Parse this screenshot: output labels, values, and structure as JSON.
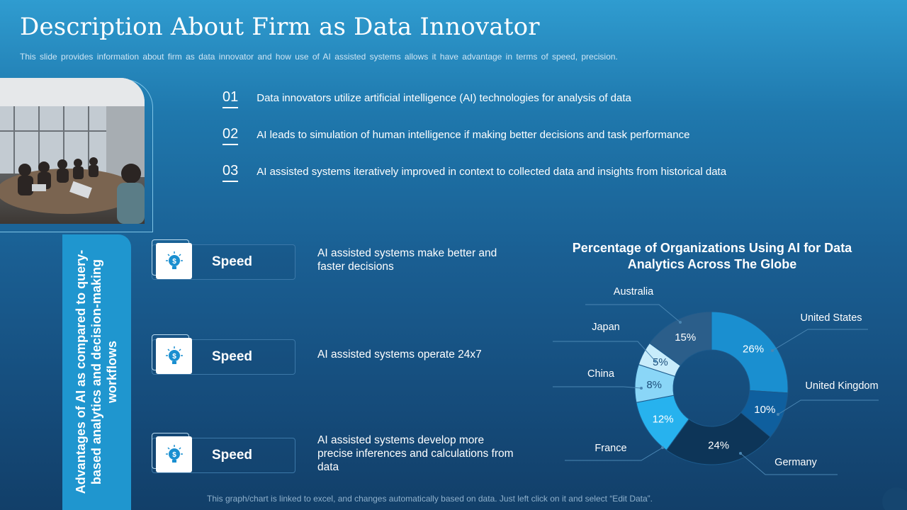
{
  "header": {
    "title": "Description About Firm as Data Innovator",
    "subtitle": "This slide provides information about firm as data innovator and how use of AI assisted systems allows it have advantage in terms of speed, precision."
  },
  "points": [
    {
      "num": "01",
      "text": "Data innovators utilize artificial intelligence (AI) technologies for analysis of data"
    },
    {
      "num": "02",
      "text": "AI leads to simulation of human intelligence if making better decisions and task performance"
    },
    {
      "num": "03",
      "text": "AI assisted systems iteratively improved in context to collected data and insights from historical data"
    }
  ],
  "advantages": {
    "heading": "Advantages of AI as compared to query-based analytics and decision-making workflows",
    "items": [
      {
        "label": "Speed",
        "icon": "idea-bulb-dollar-icon",
        "desc": "AI assisted systems make better and faster decisions"
      },
      {
        "label": "Speed",
        "icon": "idea-bulb-dollar-icon",
        "desc": "AI assisted systems operate 24x7"
      },
      {
        "label": "Speed",
        "icon": "idea-bulb-dollar-icon",
        "desc": "AI assisted systems develop more precise inferences and calculations from data"
      }
    ]
  },
  "chart_data": {
    "type": "pie",
    "title": "Percentage of Organizations Using AI for Data Analytics Across The Globe",
    "categories": [
      "United States",
      "United Kingdom",
      "Germany",
      "France",
      "China",
      "Japan",
      "Australia"
    ],
    "values": [
      26,
      10,
      24,
      12,
      8,
      5,
      15
    ],
    "value_labels": [
      "26%",
      "10%",
      "24%",
      "12%",
      "8%",
      "5%",
      "15%"
    ],
    "colors": [
      "#1a8fd0",
      "#0f5f9e",
      "#0d3558",
      "#27b2ee",
      "#8ad6f7",
      "#c8ecfb",
      "#2b5e8a"
    ]
  },
  "footer": "This graph/chart is linked to excel, and changes automatically based on data. Just left click on it and select “Edit Data”."
}
